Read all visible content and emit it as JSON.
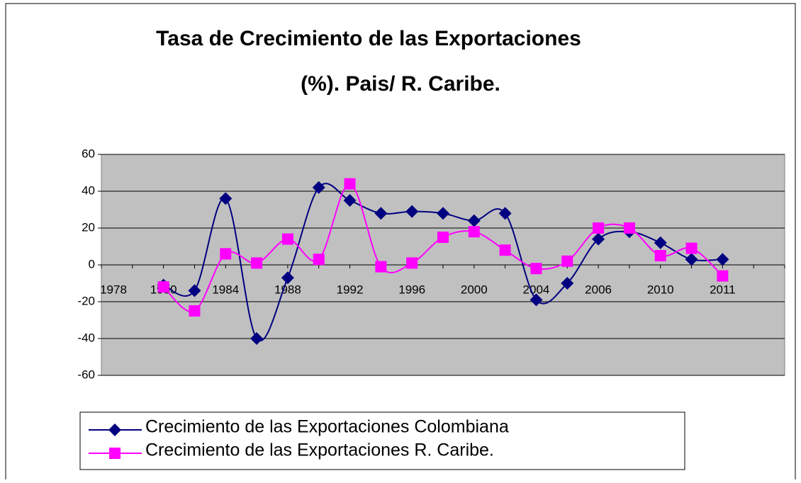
{
  "chart_data": {
    "type": "line",
    "title": [
      "Tasa de Crecimiento de las Exportaciones",
      "(%). Pais/ R. Caribe."
    ],
    "categories": [
      "1978",
      null,
      "1980",
      null,
      "1984",
      null,
      "1988",
      null,
      "1992",
      null,
      "1996",
      null,
      "2000",
      null,
      "2004",
      null,
      "2006",
      null,
      "2010",
      null,
      "2011",
      null
    ],
    "series": [
      {
        "name": "Crecimiento de las Exportaciones Colombiana",
        "color": "#000080",
        "marker": "diamond",
        "values": [
          null,
          null,
          -11,
          -14,
          36,
          -40,
          -7,
          42,
          35,
          28,
          29,
          28,
          24,
          28,
          -19,
          -10,
          14,
          18,
          12,
          3,
          3,
          null
        ]
      },
      {
        "name": "Crecimiento de las Exportaciones R. Caribe.",
        "color": "#ff00ff",
        "marker": "square",
        "values": [
          null,
          null,
          -12,
          -25,
          6,
          1,
          14,
          3,
          44,
          -1,
          1,
          15,
          18,
          8,
          -2,
          2,
          20,
          20,
          5,
          9,
          -6,
          null
        ]
      }
    ],
    "ylim": [
      -60,
      60
    ],
    "yticks": [
      -60,
      -40,
      -20,
      0,
      20,
      40,
      60
    ],
    "grid": true,
    "legend": "bottom"
  }
}
